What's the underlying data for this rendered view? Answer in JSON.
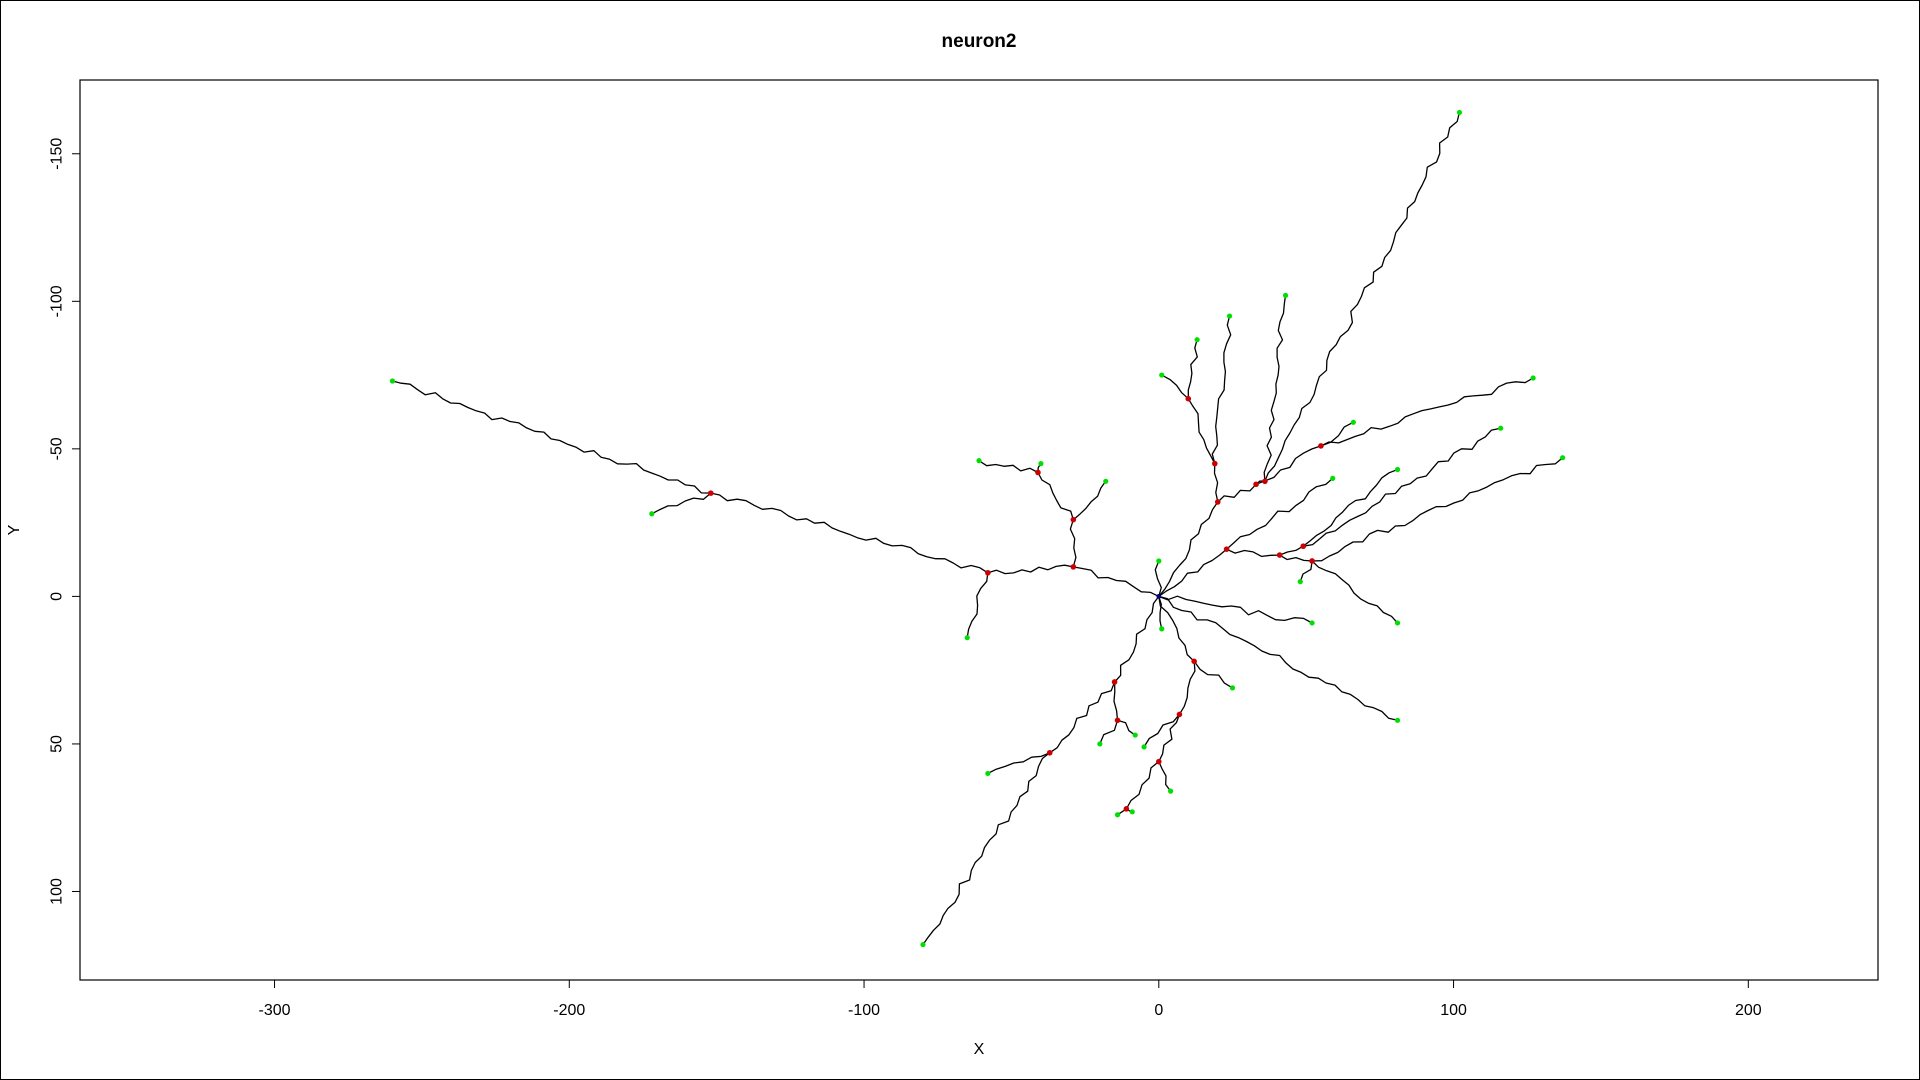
{
  "chart_data": {
    "type": "scatter",
    "title": "neuron2",
    "xlabel": "X",
    "ylabel": "Y",
    "xlim": [
      -366,
      244
    ],
    "ylim": [
      -175,
      130
    ],
    "y_reversed": true,
    "grid": false,
    "legend": "none",
    "x_ticks": [
      -300,
      -200,
      -100,
      0,
      100,
      200
    ],
    "x_tick_labels": [
      "-300",
      "-200",
      "-100",
      "0",
      "100",
      "200"
    ],
    "y_ticks": [
      -150,
      -100,
      -50,
      0,
      50,
      100
    ],
    "y_tick_labels": [
      "-150",
      "-100",
      "-50",
      "0",
      "50",
      "100"
    ],
    "colors": {
      "line": "#000000",
      "branch_point": "#cc0000",
      "end_point": "#00e000",
      "soma": "#000080"
    },
    "soma": [
      0,
      0
    ],
    "branch_points": [
      [
        -58,
        -8
      ],
      [
        -29,
        -10
      ],
      [
        -29,
        -26
      ],
      [
        -41,
        -42
      ],
      [
        -152,
        -35
      ],
      [
        20,
        -32
      ],
      [
        19,
        -45
      ],
      [
        10,
        -67
      ],
      [
        23,
        -16
      ],
      [
        33,
        -38
      ],
      [
        36,
        -39
      ],
      [
        55,
        -51
      ],
      [
        41,
        -14
      ],
      [
        49,
        -17
      ],
      [
        52,
        -12
      ],
      [
        -15,
        29
      ],
      [
        -14,
        42
      ],
      [
        -37,
        53
      ],
      [
        7,
        40
      ],
      [
        12,
        22
      ],
      [
        0,
        56
      ],
      [
        -11,
        72
      ]
    ],
    "end_points": [
      [
        -260,
        -73
      ],
      [
        -172,
        -28
      ],
      [
        -65,
        14
      ],
      [
        -61,
        -46
      ],
      [
        -40,
        -45
      ],
      [
        -18,
        -39
      ],
      [
        0,
        -12
      ],
      [
        1,
        11
      ],
      [
        1,
        -75
      ],
      [
        13,
        -87
      ],
      [
        24,
        -95
      ],
      [
        43,
        -102
      ],
      [
        102,
        -164
      ],
      [
        66,
        -59
      ],
      [
        59,
        -40
      ],
      [
        81,
        -43
      ],
      [
        127,
        -74
      ],
      [
        116,
        -57
      ],
      [
        137,
        -47
      ],
      [
        48,
        -5
      ],
      [
        52,
        9
      ],
      [
        81,
        9
      ],
      [
        81,
        42
      ],
      [
        25,
        31
      ],
      [
        -58,
        60
      ],
      [
        -20,
        50
      ],
      [
        -8,
        47
      ],
      [
        -5,
        51
      ],
      [
        4,
        66
      ],
      [
        -14,
        74
      ],
      [
        -9,
        73
      ],
      [
        -80,
        118
      ]
    ],
    "segments": [
      [
        [
          0,
          0
        ],
        [
          -29,
          -10
        ]
      ],
      [
        [
          -29,
          -10
        ],
        [
          -58,
          -8
        ]
      ],
      [
        [
          -58,
          -8
        ],
        [
          -152,
          -35
        ]
      ],
      [
        [
          -152,
          -35
        ],
        [
          -260,
          -73
        ]
      ],
      [
        [
          -152,
          -35
        ],
        [
          -172,
          -28
        ]
      ],
      [
        [
          -58,
          -8
        ],
        [
          -65,
          14
        ]
      ],
      [
        [
          -29,
          -10
        ],
        [
          -29,
          -26
        ]
      ],
      [
        [
          -29,
          -26
        ],
        [
          -41,
          -42
        ]
      ],
      [
        [
          -41,
          -42
        ],
        [
          -61,
          -46
        ]
      ],
      [
        [
          -41,
          -42
        ],
        [
          -40,
          -45
        ]
      ],
      [
        [
          -29,
          -26
        ],
        [
          -18,
          -39
        ]
      ],
      [
        [
          0,
          0
        ],
        [
          0,
          -12
        ]
      ],
      [
        [
          0,
          0
        ],
        [
          1,
          11
        ]
      ],
      [
        [
          0,
          0
        ],
        [
          20,
          -32
        ]
      ],
      [
        [
          20,
          -32
        ],
        [
          19,
          -45
        ]
      ],
      [
        [
          19,
          -45
        ],
        [
          10,
          -67
        ]
      ],
      [
        [
          10,
          -67
        ],
        [
          1,
          -75
        ]
      ],
      [
        [
          10,
          -67
        ],
        [
          13,
          -87
        ]
      ],
      [
        [
          19,
          -45
        ],
        [
          24,
          -95
        ]
      ],
      [
        [
          20,
          -32
        ],
        [
          33,
          -38
        ]
      ],
      [
        [
          33,
          -38
        ],
        [
          36,
          -39
        ]
      ],
      [
        [
          36,
          -39
        ],
        [
          43,
          -102
        ]
      ],
      [
        [
          36,
          -39
        ],
        [
          102,
          -164
        ]
      ],
      [
        [
          33,
          -38
        ],
        [
          55,
          -51
        ]
      ],
      [
        [
          55,
          -51
        ],
        [
          66,
          -59
        ]
      ],
      [
        [
          55,
          -51
        ],
        [
          127,
          -74
        ]
      ],
      [
        [
          0,
          0
        ],
        [
          23,
          -16
        ]
      ],
      [
        [
          23,
          -16
        ],
        [
          59,
          -40
        ]
      ],
      [
        [
          23,
          -16
        ],
        [
          41,
          -14
        ]
      ],
      [
        [
          41,
          -14
        ],
        [
          49,
          -17
        ]
      ],
      [
        [
          49,
          -17
        ],
        [
          81,
          -43
        ]
      ],
      [
        [
          49,
          -17
        ],
        [
          116,
          -57
        ]
      ],
      [
        [
          41,
          -14
        ],
        [
          52,
          -12
        ]
      ],
      [
        [
          52,
          -12
        ],
        [
          137,
          -47
        ]
      ],
      [
        [
          52,
          -12
        ],
        [
          48,
          -5
        ]
      ],
      [
        [
          52,
          -12
        ],
        [
          81,
          9
        ]
      ],
      [
        [
          0,
          0
        ],
        [
          52,
          9
        ]
      ],
      [
        [
          0,
          0
        ],
        [
          81,
          42
        ]
      ],
      [
        [
          0,
          0
        ],
        [
          12,
          22
        ]
      ],
      [
        [
          12,
          22
        ],
        [
          25,
          31
        ]
      ],
      [
        [
          0,
          0
        ],
        [
          -15,
          29
        ]
      ],
      [
        [
          -15,
          29
        ],
        [
          -37,
          53
        ]
      ],
      [
        [
          -37,
          53
        ],
        [
          -58,
          60
        ]
      ],
      [
        [
          -37,
          53
        ],
        [
          -80,
          118
        ]
      ],
      [
        [
          -15,
          29
        ],
        [
          -14,
          42
        ]
      ],
      [
        [
          -14,
          42
        ],
        [
          -20,
          50
        ]
      ],
      [
        [
          -14,
          42
        ],
        [
          -8,
          47
        ]
      ],
      [
        [
          12,
          22
        ],
        [
          7,
          40
        ]
      ],
      [
        [
          7,
          40
        ],
        [
          -5,
          51
        ]
      ],
      [
        [
          7,
          40
        ],
        [
          0,
          56
        ]
      ],
      [
        [
          0,
          56
        ],
        [
          4,
          66
        ]
      ],
      [
        [
          0,
          56
        ],
        [
          -11,
          72
        ]
      ],
      [
        [
          -11,
          72
        ],
        [
          -14,
          74
        ]
      ],
      [
        [
          -11,
          72
        ],
        [
          -9,
          73
        ]
      ]
    ]
  }
}
